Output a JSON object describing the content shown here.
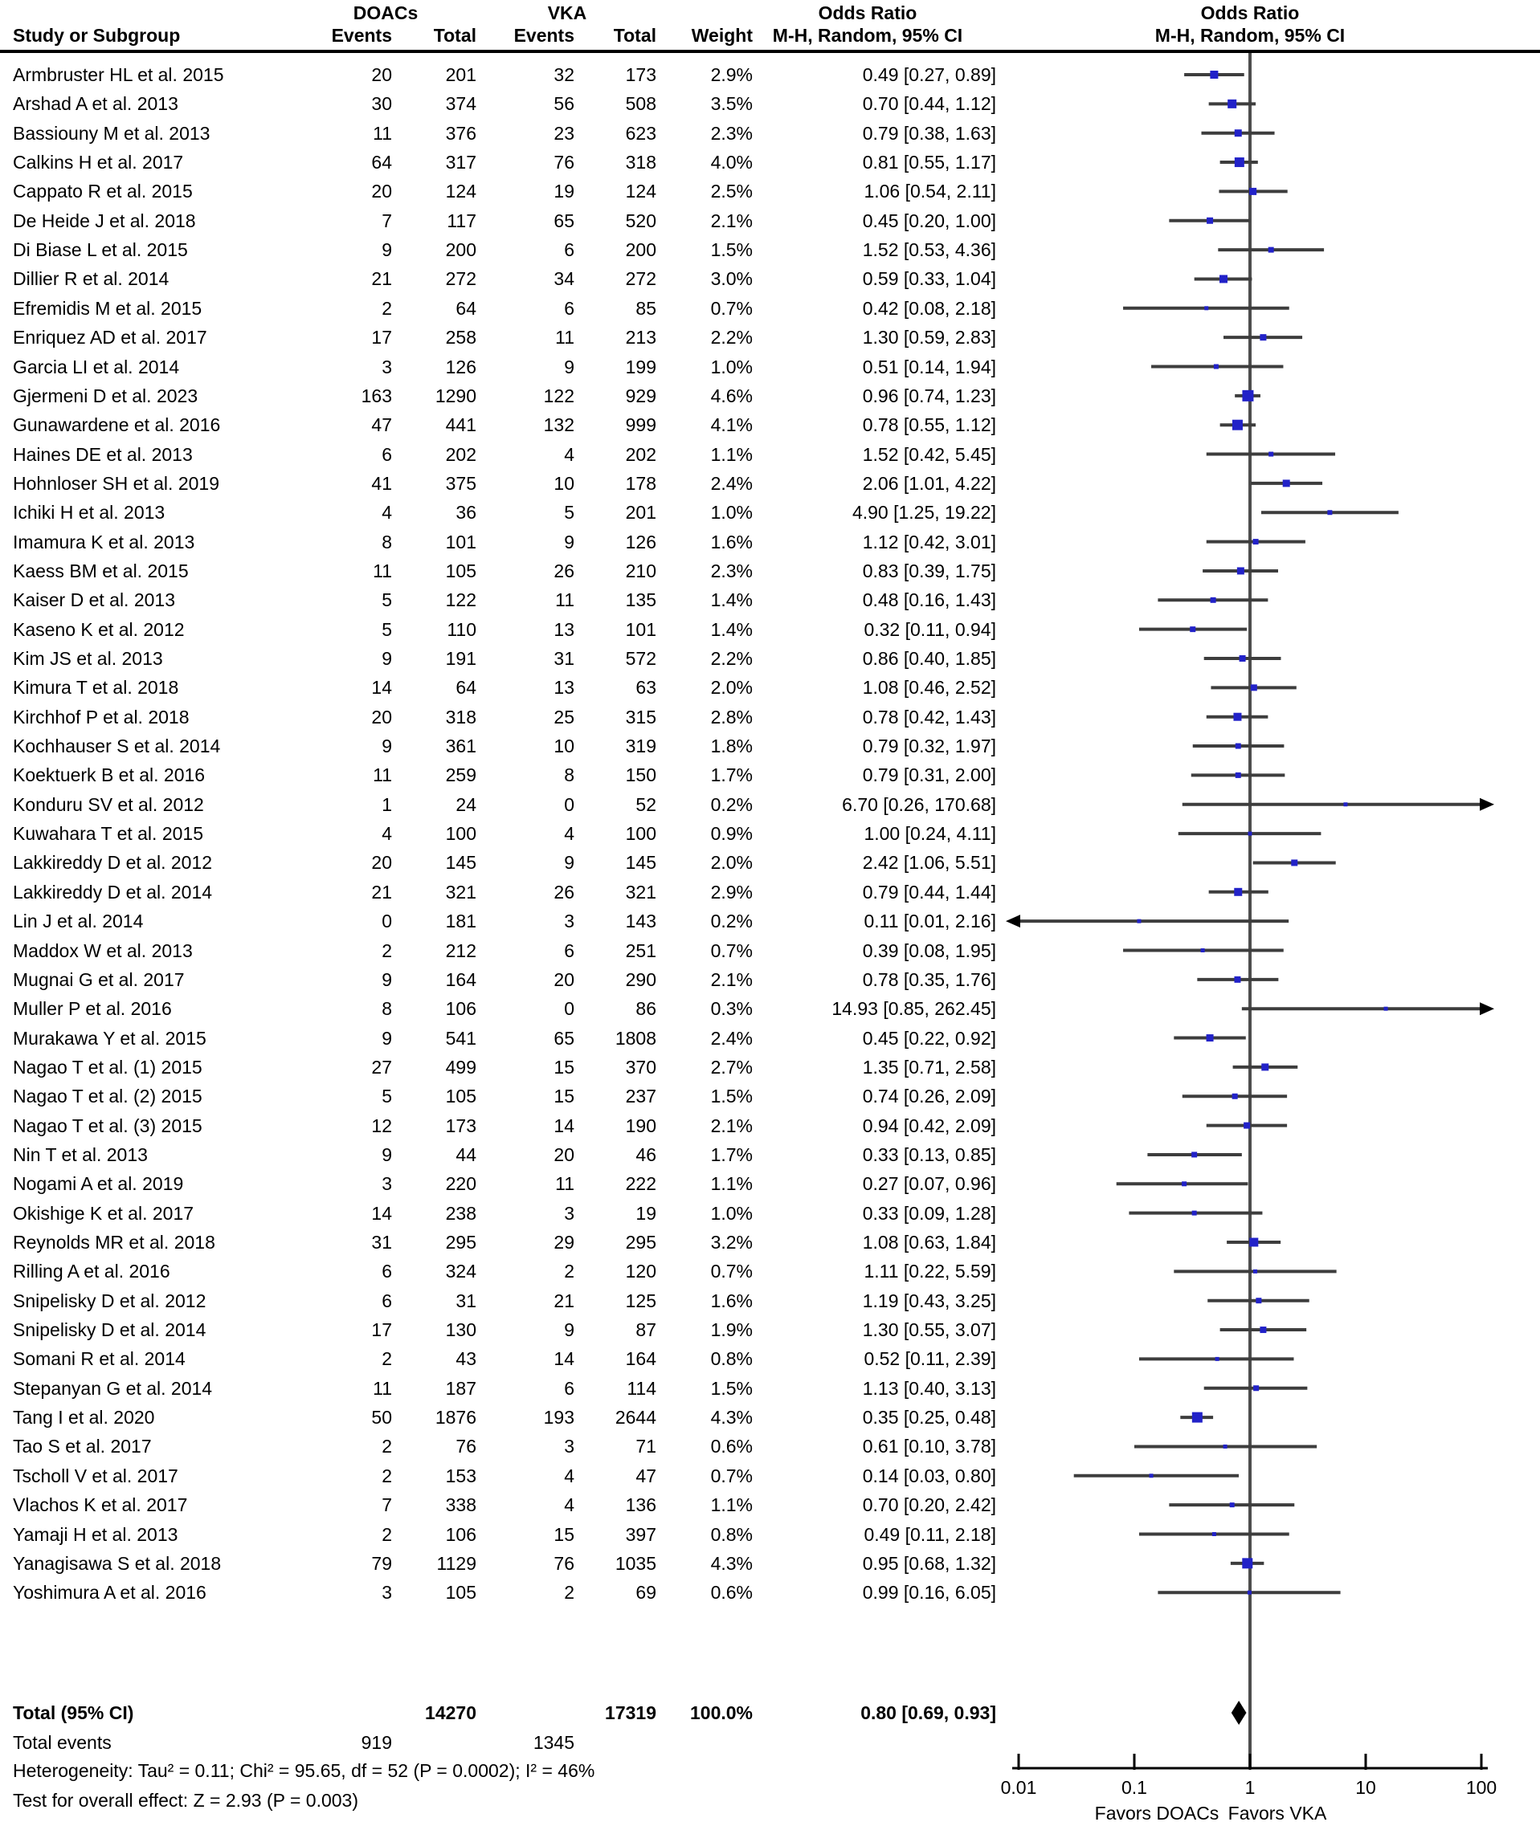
{
  "chart_data": {
    "type": "forest",
    "x_scale": "log",
    "effect_measure": "Odds Ratio",
    "header": {
      "col_study": "Study or Subgroup",
      "group_doacs": "DOACs",
      "group_vka": "VKA",
      "col_events": "Events",
      "col_total": "Total",
      "col_weight": "Weight",
      "or_title": "Odds Ratio",
      "or_subtitle": "M-H, Random, 95% CI"
    },
    "studies": [
      {
        "name": "Armbruster HL et al. 2015",
        "e1": "20",
        "n1": "201",
        "e2": "32",
        "n2": "173",
        "weight": "2.9%",
        "ci": "0.49 [0.27, 0.89]",
        "or": 0.49,
        "lo": 0.27,
        "hi": 0.89,
        "w": 2.9
      },
      {
        "name": "Arshad A et al. 2013",
        "e1": "30",
        "n1": "374",
        "e2": "56",
        "n2": "508",
        "weight": "3.5%",
        "ci": "0.70 [0.44, 1.12]",
        "or": 0.7,
        "lo": 0.44,
        "hi": 1.12,
        "w": 3.5
      },
      {
        "name": "Bassiouny M et al. 2013",
        "e1": "11",
        "n1": "376",
        "e2": "23",
        "n2": "623",
        "weight": "2.3%",
        "ci": "0.79 [0.38, 1.63]",
        "or": 0.79,
        "lo": 0.38,
        "hi": 1.63,
        "w": 2.3
      },
      {
        "name": "Calkins H et al. 2017",
        "e1": "64",
        "n1": "317",
        "e2": "76",
        "n2": "318",
        "weight": "4.0%",
        "ci": "0.81 [0.55, 1.17]",
        "or": 0.81,
        "lo": 0.55,
        "hi": 1.17,
        "w": 4.0
      },
      {
        "name": "Cappato R et al. 2015",
        "e1": "20",
        "n1": "124",
        "e2": "19",
        "n2": "124",
        "weight": "2.5%",
        "ci": "1.06 [0.54, 2.11]",
        "or": 1.06,
        "lo": 0.54,
        "hi": 2.11,
        "w": 2.5
      },
      {
        "name": "De Heide J et al. 2018",
        "e1": "7",
        "n1": "117",
        "e2": "65",
        "n2": "520",
        "weight": "2.1%",
        "ci": "0.45 [0.20, 1.00]",
        "or": 0.45,
        "lo": 0.2,
        "hi": 1.0,
        "w": 2.1
      },
      {
        "name": "Di Biase L et al. 2015",
        "e1": "9",
        "n1": "200",
        "e2": "6",
        "n2": "200",
        "weight": "1.5%",
        "ci": "1.52 [0.53, 4.36]",
        "or": 1.52,
        "lo": 0.53,
        "hi": 4.36,
        "w": 1.5
      },
      {
        "name": "Dillier R et al. 2014",
        "e1": "21",
        "n1": "272",
        "e2": "34",
        "n2": "272",
        "weight": "3.0%",
        "ci": "0.59 [0.33, 1.04]",
        "or": 0.59,
        "lo": 0.33,
        "hi": 1.04,
        "w": 3.0
      },
      {
        "name": "Efremidis M et al. 2015",
        "e1": "2",
        "n1": "64",
        "e2": "6",
        "n2": "85",
        "weight": "0.7%",
        "ci": "0.42 [0.08, 2.18]",
        "or": 0.42,
        "lo": 0.08,
        "hi": 2.18,
        "w": 0.7
      },
      {
        "name": "Enriquez AD et al. 2017",
        "e1": "17",
        "n1": "258",
        "e2": "11",
        "n2": "213",
        "weight": "2.2%",
        "ci": "1.30 [0.59, 2.83]",
        "or": 1.3,
        "lo": 0.59,
        "hi": 2.83,
        "w": 2.2
      },
      {
        "name": "Garcia LI et al. 2014",
        "e1": "3",
        "n1": "126",
        "e2": "9",
        "n2": "199",
        "weight": "1.0%",
        "ci": "0.51 [0.14, 1.94]",
        "or": 0.51,
        "lo": 0.14,
        "hi": 1.94,
        "w": 1.0
      },
      {
        "name": "Gjermeni D et al. 2023",
        "e1": "163",
        "n1": "1290",
        "e2": "122",
        "n2": "929",
        "weight": "4.6%",
        "ci": "0.96 [0.74, 1.23]",
        "or": 0.96,
        "lo": 0.74,
        "hi": 1.23,
        "w": 4.6
      },
      {
        "name": "Gunawardene et al. 2016",
        "e1": "47",
        "n1": "441",
        "e2": "132",
        "n2": "999",
        "weight": "4.1%",
        "ci": "0.78 [0.55, 1.12]",
        "or": 0.78,
        "lo": 0.55,
        "hi": 1.12,
        "w": 4.1
      },
      {
        "name": "Haines DE et al. 2013",
        "e1": "6",
        "n1": "202",
        "e2": "4",
        "n2": "202",
        "weight": "1.1%",
        "ci": "1.52 [0.42, 5.45]",
        "or": 1.52,
        "lo": 0.42,
        "hi": 5.45,
        "w": 1.1
      },
      {
        "name": "Hohnloser SH et al. 2019",
        "e1": "41",
        "n1": "375",
        "e2": "10",
        "n2": "178",
        "weight": "2.4%",
        "ci": "2.06 [1.01, 4.22]",
        "or": 2.06,
        "lo": 1.01,
        "hi": 4.22,
        "w": 2.4
      },
      {
        "name": "Ichiki H et al. 2013",
        "e1": "4",
        "n1": "36",
        "e2": "5",
        "n2": "201",
        "weight": "1.0%",
        "ci": "4.90 [1.25, 19.22]",
        "or": 4.9,
        "lo": 1.25,
        "hi": 19.22,
        "w": 1.0
      },
      {
        "name": "Imamura K et al. 2013",
        "e1": "8",
        "n1": "101",
        "e2": "9",
        "n2": "126",
        "weight": "1.6%",
        "ci": "1.12 [0.42, 3.01]",
        "or": 1.12,
        "lo": 0.42,
        "hi": 3.01,
        "w": 1.6
      },
      {
        "name": "Kaess BM et al. 2015",
        "e1": "11",
        "n1": "105",
        "e2": "26",
        "n2": "210",
        "weight": "2.3%",
        "ci": "0.83 [0.39, 1.75]",
        "or": 0.83,
        "lo": 0.39,
        "hi": 1.75,
        "w": 2.3
      },
      {
        "name": "Kaiser D et al. 2013",
        "e1": "5",
        "n1": "122",
        "e2": "11",
        "n2": "135",
        "weight": "1.4%",
        "ci": "0.48 [0.16, 1.43]",
        "or": 0.48,
        "lo": 0.16,
        "hi": 1.43,
        "w": 1.4
      },
      {
        "name": "Kaseno K et al. 2012",
        "e1": "5",
        "n1": "110",
        "e2": "13",
        "n2": "101",
        "weight": "1.4%",
        "ci": "0.32 [0.11, 0.94]",
        "or": 0.32,
        "lo": 0.11,
        "hi": 0.94,
        "w": 1.4
      },
      {
        "name": "Kim JS et al. 2013",
        "e1": "9",
        "n1": "191",
        "e2": "31",
        "n2": "572",
        "weight": "2.2%",
        "ci": "0.86 [0.40, 1.85]",
        "or": 0.86,
        "lo": 0.4,
        "hi": 1.85,
        "w": 2.2
      },
      {
        "name": "Kimura T et al. 2018",
        "e1": "14",
        "n1": "64",
        "e2": "13",
        "n2": "63",
        "weight": "2.0%",
        "ci": "1.08 [0.46, 2.52]",
        "or": 1.08,
        "lo": 0.46,
        "hi": 2.52,
        "w": 2.0
      },
      {
        "name": "Kirchhof P et al. 2018",
        "e1": "20",
        "n1": "318",
        "e2": "25",
        "n2": "315",
        "weight": "2.8%",
        "ci": "0.78 [0.42, 1.43]",
        "or": 0.78,
        "lo": 0.42,
        "hi": 1.43,
        "w": 2.8
      },
      {
        "name": "Kochhauser S et al. 2014",
        "e1": "9",
        "n1": "361",
        "e2": "10",
        "n2": "319",
        "weight": "1.8%",
        "ci": "0.79 [0.32, 1.97]",
        "or": 0.79,
        "lo": 0.32,
        "hi": 1.97,
        "w": 1.8
      },
      {
        "name": "Koektuerk B et al. 2016",
        "e1": "11",
        "n1": "259",
        "e2": "8",
        "n2": "150",
        "weight": "1.7%",
        "ci": "0.79 [0.31, 2.00]",
        "or": 0.79,
        "lo": 0.31,
        "hi": 2.0,
        "w": 1.7
      },
      {
        "name": "Konduru SV et al. 2012",
        "e1": "1",
        "n1": "24",
        "e2": "0",
        "n2": "52",
        "weight": "0.2%",
        "ci": "6.70 [0.26, 170.68]",
        "or": 6.7,
        "lo": 0.26,
        "hi": 170.68,
        "w": 0.2
      },
      {
        "name": "Kuwahara T et al. 2015",
        "e1": "4",
        "n1": "100",
        "e2": "4",
        "n2": "100",
        "weight": "0.9%",
        "ci": "1.00 [0.24, 4.11]",
        "or": 1.0,
        "lo": 0.24,
        "hi": 4.11,
        "w": 0.9
      },
      {
        "name": "Lakkireddy D et al. 2012",
        "e1": "20",
        "n1": "145",
        "e2": "9",
        "n2": "145",
        "weight": "2.0%",
        "ci": "2.42 [1.06, 5.51]",
        "or": 2.42,
        "lo": 1.06,
        "hi": 5.51,
        "w": 2.0
      },
      {
        "name": "Lakkireddy D et al. 2014",
        "e1": "21",
        "n1": "321",
        "e2": "26",
        "n2": "321",
        "weight": "2.9%",
        "ci": "0.79 [0.44, 1.44]",
        "or": 0.79,
        "lo": 0.44,
        "hi": 1.44,
        "w": 2.9
      },
      {
        "name": "Lin J et al. 2014",
        "e1": "0",
        "n1": "181",
        "e2": "3",
        "n2": "143",
        "weight": "0.2%",
        "ci": "0.11 [0.01, 2.16]",
        "or": 0.11,
        "lo": 0.01,
        "hi": 2.16,
        "w": 0.2
      },
      {
        "name": "Maddox W et al. 2013",
        "e1": "2",
        "n1": "212",
        "e2": "6",
        "n2": "251",
        "weight": "0.7%",
        "ci": "0.39 [0.08, 1.95]",
        "or": 0.39,
        "lo": 0.08,
        "hi": 1.95,
        "w": 0.7
      },
      {
        "name": "Mugnai G et al. 2017",
        "e1": "9",
        "n1": "164",
        "e2": "20",
        "n2": "290",
        "weight": "2.1%",
        "ci": "0.78 [0.35, 1.76]",
        "or": 0.78,
        "lo": 0.35,
        "hi": 1.76,
        "w": 2.1
      },
      {
        "name": "Muller P et al. 2016",
        "e1": "8",
        "n1": "106",
        "e2": "0",
        "n2": "86",
        "weight": "0.3%",
        "ci": "14.93 [0.85, 262.45]",
        "or": 14.93,
        "lo": 0.85,
        "hi": 262.45,
        "w": 0.3
      },
      {
        "name": "Murakawa Y et al. 2015",
        "e1": "9",
        "n1": "541",
        "e2": "65",
        "n2": "1808",
        "weight": "2.4%",
        "ci": "0.45 [0.22, 0.92]",
        "or": 0.45,
        "lo": 0.22,
        "hi": 0.92,
        "w": 2.4
      },
      {
        "name": "Nagao T et al. (1) 2015",
        "e1": "27",
        "n1": "499",
        "e2": "15",
        "n2": "370",
        "weight": "2.7%",
        "ci": "1.35 [0.71, 2.58]",
        "or": 1.35,
        "lo": 0.71,
        "hi": 2.58,
        "w": 2.7
      },
      {
        "name": "Nagao T et al. (2) 2015",
        "e1": "5",
        "n1": "105",
        "e2": "15",
        "n2": "237",
        "weight": "1.5%",
        "ci": "0.74 [0.26, 2.09]",
        "or": 0.74,
        "lo": 0.26,
        "hi": 2.09,
        "w": 1.5
      },
      {
        "name": "Nagao T et al. (3) 2015",
        "e1": "12",
        "n1": "173",
        "e2": "14",
        "n2": "190",
        "weight": "2.1%",
        "ci": "0.94 [0.42, 2.09]",
        "or": 0.94,
        "lo": 0.42,
        "hi": 2.09,
        "w": 2.1
      },
      {
        "name": "Nin T et al. 2013",
        "e1": "9",
        "n1": "44",
        "e2": "20",
        "n2": "46",
        "weight": "1.7%",
        "ci": "0.33 [0.13, 0.85]",
        "or": 0.33,
        "lo": 0.13,
        "hi": 0.85,
        "w": 1.7
      },
      {
        "name": "Nogami A et al. 2019",
        "e1": "3",
        "n1": "220",
        "e2": "11",
        "n2": "222",
        "weight": "1.1%",
        "ci": "0.27 [0.07, 0.96]",
        "or": 0.27,
        "lo": 0.07,
        "hi": 0.96,
        "w": 1.1
      },
      {
        "name": "Okishige K et al. 2017",
        "e1": "14",
        "n1": "238",
        "e2": "3",
        "n2": "19",
        "weight": "1.0%",
        "ci": "0.33 [0.09, 1.28]",
        "or": 0.33,
        "lo": 0.09,
        "hi": 1.28,
        "w": 1.0
      },
      {
        "name": "Reynolds MR et al. 2018",
        "e1": "31",
        "n1": "295",
        "e2": "29",
        "n2": "295",
        "weight": "3.2%",
        "ci": "1.08 [0.63, 1.84]",
        "or": 1.08,
        "lo": 0.63,
        "hi": 1.84,
        "w": 3.2
      },
      {
        "name": "Rilling A et al. 2016",
        "e1": "6",
        "n1": "324",
        "e2": "2",
        "n2": "120",
        "weight": "0.7%",
        "ci": "1.11 [0.22, 5.59]",
        "or": 1.11,
        "lo": 0.22,
        "hi": 5.59,
        "w": 0.7
      },
      {
        "name": "Snipelisky D et al. 2012",
        "e1": "6",
        "n1": "31",
        "e2": "21",
        "n2": "125",
        "weight": "1.6%",
        "ci": "1.19 [0.43, 3.25]",
        "or": 1.19,
        "lo": 0.43,
        "hi": 3.25,
        "w": 1.6
      },
      {
        "name": "Snipelisky D et al. 2014",
        "e1": "17",
        "n1": "130",
        "e2": "9",
        "n2": "87",
        "weight": "1.9%",
        "ci": "1.30 [0.55, 3.07]",
        "or": 1.3,
        "lo": 0.55,
        "hi": 3.07,
        "w": 1.9
      },
      {
        "name": "Somani R et al. 2014",
        "e1": "2",
        "n1": "43",
        "e2": "14",
        "n2": "164",
        "weight": "0.8%",
        "ci": "0.52 [0.11, 2.39]",
        "or": 0.52,
        "lo": 0.11,
        "hi": 2.39,
        "w": 0.8
      },
      {
        "name": "Stepanyan G et al. 2014",
        "e1": "11",
        "n1": "187",
        "e2": "6",
        "n2": "114",
        "weight": "1.5%",
        "ci": "1.13 [0.40, 3.13]",
        "or": 1.13,
        "lo": 0.4,
        "hi": 3.13,
        "w": 1.5
      },
      {
        "name": "Tang I et al. 2020",
        "e1": "50",
        "n1": "1876",
        "e2": "193",
        "n2": "2644",
        "weight": "4.3%",
        "ci": "0.35 [0.25, 0.48]",
        "or": 0.35,
        "lo": 0.25,
        "hi": 0.48,
        "w": 4.3
      },
      {
        "name": "Tao S et al. 2017",
        "e1": "2",
        "n1": "76",
        "e2": "3",
        "n2": "71",
        "weight": "0.6%",
        "ci": "0.61 [0.10, 3.78]",
        "or": 0.61,
        "lo": 0.1,
        "hi": 3.78,
        "w": 0.6
      },
      {
        "name": "Tscholl V et al. 2017",
        "e1": "2",
        "n1": "153",
        "e2": "4",
        "n2": "47",
        "weight": "0.7%",
        "ci": "0.14 [0.03, 0.80]",
        "or": 0.14,
        "lo": 0.03,
        "hi": 0.8,
        "w": 0.7
      },
      {
        "name": "Vlachos K et al. 2017",
        "e1": "7",
        "n1": "338",
        "e2": "4",
        "n2": "136",
        "weight": "1.1%",
        "ci": "0.70 [0.20, 2.42]",
        "or": 0.7,
        "lo": 0.2,
        "hi": 2.42,
        "w": 1.1
      },
      {
        "name": "Yamaji H et al. 2013",
        "e1": "2",
        "n1": "106",
        "e2": "15",
        "n2": "397",
        "weight": "0.8%",
        "ci": "0.49 [0.11, 2.18]",
        "or": 0.49,
        "lo": 0.11,
        "hi": 2.18,
        "w": 0.8
      },
      {
        "name": "Yanagisawa S et al. 2018",
        "e1": "79",
        "n1": "1129",
        "e2": "76",
        "n2": "1035",
        "weight": "4.3%",
        "ci": "0.95 [0.68, 1.32]",
        "or": 0.95,
        "lo": 0.68,
        "hi": 1.32,
        "w": 4.3
      },
      {
        "name": "Yoshimura A et al. 2016",
        "e1": "3",
        "n1": "105",
        "e2": "2",
        "n2": "69",
        "weight": "0.6%",
        "ci": "0.99 [0.16, 6.05]",
        "or": 0.99,
        "lo": 0.16,
        "hi": 6.05,
        "w": 0.6
      }
    ],
    "totals": {
      "label": "Total (95% CI)",
      "doacs_total": "14270",
      "vka_total": "17319",
      "weight": "100.0%",
      "ci": "0.80 [0.69, 0.93]",
      "or": 0.8,
      "lo": 0.69,
      "hi": 0.93,
      "events_label": "Total events",
      "doacs_events": "919",
      "vka_events": "1345"
    },
    "footnotes": {
      "heterogeneity": "Heterogeneity: Tau² = 0.11; Chi² = 95.65, df = 52 (P = 0.0002); I² = 46%",
      "overall_effect": "Test for overall effect: Z = 2.93 (P = 0.003)"
    },
    "axis": {
      "ticks": [
        {
          "label": "0.01",
          "v": 0.01
        },
        {
          "label": "0.1",
          "v": 0.1
        },
        {
          "label": "1",
          "v": 1
        },
        {
          "label": "10",
          "v": 10
        },
        {
          "label": "100",
          "v": 100
        }
      ],
      "favors_left": "Favors DOACs",
      "favors_right": "Favors VKA"
    },
    "colors": {
      "marker": "#2222c8",
      "ci_line": "#3d3d3d",
      "guide_line": "#4d4d4d",
      "diamond": "#000000",
      "axis": "#000000"
    }
  }
}
